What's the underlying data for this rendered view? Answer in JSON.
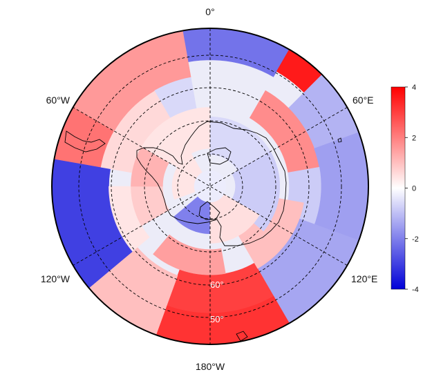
{
  "chart_data": {
    "type": "heatmap",
    "projection": "south-polar-stereographic",
    "title": "",
    "colormap": {
      "low": "#0000d8",
      "mid": "#ffffff",
      "high": "#ff0000"
    },
    "colorbar": {
      "min": -4,
      "max": 4,
      "ticks": [
        "4",
        "2",
        "0",
        "-2",
        "-4"
      ],
      "tick_values": [
        4,
        2,
        0,
        -2,
        -4
      ],
      "placement": "right"
    },
    "longitude_labels": [
      {
        "text": "0°",
        "lon": 0
      },
      {
        "text": "60°E",
        "lon": 60
      },
      {
        "text": "120°E",
        "lon": 120
      },
      {
        "text": "180°W",
        "lon": 180
      },
      {
        "text": "120°W",
        "lon": -120
      },
      {
        "text": "60°W",
        "lon": -60
      }
    ],
    "latitude_labels": [
      {
        "text": "60°",
        "lat": -60
      },
      {
        "text": "50°",
        "lat": -50
      }
    ],
    "latitude_circles": [
      -80,
      -70,
      -60,
      -50
    ],
    "outer_latitude": -40,
    "grid": true,
    "anomaly_sectors": [
      {
        "lon_start": -10,
        "lon_end": 30,
        "lat_start": -40,
        "lat_end": -50,
        "value": -2.2
      },
      {
        "lon_start": 30,
        "lon_end": 45,
        "lat_start": -40,
        "lat_end": -48,
        "value": 3.6
      },
      {
        "lon_start": 45,
        "lon_end": 70,
        "lat_start": -40,
        "lat_end": -55,
        "value": -1.2
      },
      {
        "lon_start": 30,
        "lon_end": 80,
        "lat_start": -55,
        "lat_end": -65,
        "value": 1.8
      },
      {
        "lon_start": 70,
        "lon_end": 110,
        "lat_start": -40,
        "lat_end": -55,
        "value": -1.5
      },
      {
        "lon_start": 80,
        "lon_end": 120,
        "lat_start": -55,
        "lat_end": -65,
        "value": -0.8
      },
      {
        "lon_start": 110,
        "lon_end": 150,
        "lat_start": -40,
        "lat_end": -60,
        "value": -1.4
      },
      {
        "lon_start": 150,
        "lon_end": 200,
        "lat_start": -40,
        "lat_end": -50,
        "value": 3.2
      },
      {
        "lon_start": 150,
        "lon_end": 200,
        "lat_start": -50,
        "lat_end": -62,
        "value": 3.0
      },
      {
        "lon_start": 200,
        "lon_end": 230,
        "lat_start": -40,
        "lat_end": -60,
        "value": 1.0
      },
      {
        "lon_start": 230,
        "lon_end": 280,
        "lat_start": -40,
        "lat_end": -58,
        "value": -3.0
      },
      {
        "lon_start": 230,
        "lon_end": 270,
        "lat_start": -58,
        "lat_end": -65,
        "value": 0.4
      },
      {
        "lon_start": 280,
        "lon_end": 300,
        "lat_start": -40,
        "lat_end": -55,
        "value": 2.2
      },
      {
        "lon_start": 280,
        "lon_end": 330,
        "lat_start": -55,
        "lat_end": -65,
        "value": 0.6
      },
      {
        "lon_start": 300,
        "lon_end": 350,
        "lat_start": -40,
        "lat_end": -55,
        "value": 1.6
      },
      {
        "lon_start": 330,
        "lon_end": 350,
        "lat_start": -55,
        "lat_end": -65,
        "value": -0.6
      },
      {
        "lon_start": 100,
        "lon_end": 150,
        "lat_start": -60,
        "lat_end": -72,
        "value": 1.0
      },
      {
        "lon_start": 170,
        "lon_end": 220,
        "lat_start": -62,
        "lat_end": -70,
        "value": 1.5
      },
      {
        "lon_start": 240,
        "lon_end": 280,
        "lat_start": -65,
        "lat_end": -75,
        "value": 0.8
      },
      {
        "lon_start": 150,
        "lon_end": 230,
        "lat_start": -75,
        "lat_end": -85,
        "value": -2.0
      },
      {
        "lon_start": 270,
        "lon_end": 300,
        "lat_start": -65,
        "lat_end": -75,
        "value": 1.2
      },
      {
        "lon_start": 300,
        "lon_end": 360,
        "lat_start": -65,
        "lat_end": -78,
        "value": 0.4
      },
      {
        "lon_start": 0,
        "lon_end": 60,
        "lat_start": -68,
        "lat_end": -80,
        "value": -0.6
      },
      {
        "lon_start": 60,
        "lon_end": 130,
        "lat_start": -68,
        "lat_end": -82,
        "value": -0.8
      },
      {
        "lon_start": 120,
        "lon_end": 180,
        "lat_start": -72,
        "lat_end": -85,
        "value": 0.5
      },
      {
        "lon_start": 250,
        "lon_end": 330,
        "lat_start": -78,
        "lat_end": -88,
        "value": 0.4
      },
      {
        "lon_start": 0,
        "lon_end": 360,
        "lat_start": -85,
        "lat_end": -90,
        "value": -0.3
      }
    ]
  }
}
